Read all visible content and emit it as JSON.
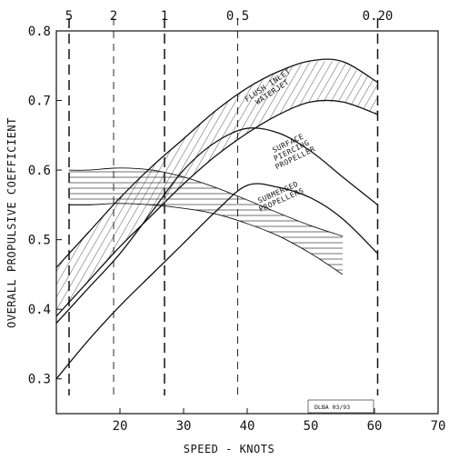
{
  "chart_data": {
    "type": "line",
    "title": "",
    "xlabel": "SPEED - KNOTS",
    "ylabel": "OVERALL PROPULSIVE COEFFICIENT",
    "xlim": [
      10,
      70
    ],
    "ylim": [
      0.25,
      0.8
    ],
    "grid": false,
    "x_ticks": [
      20,
      30,
      40,
      50,
      60,
      70
    ],
    "y_ticks": [
      0.3,
      0.4,
      0.5,
      0.6,
      0.7,
      0.8
    ],
    "x_tick_labels": [
      "20",
      "30",
      "40",
      "50",
      "60",
      "70"
    ],
    "y_tick_labels": [
      "0.3",
      "0.4",
      "0.5",
      "0.6",
      "0.7",
      "0.8"
    ],
    "top_axis": {
      "labels": [
        {
          "text": "5",
          "x": 12
        },
        {
          "text": "2",
          "x": 19
        },
        {
          "text": "1",
          "x": 27
        },
        {
          "text": "0.5",
          "x": 38.5
        },
        {
          "text": "0.20",
          "x": 60.5
        }
      ]
    },
    "reference_lines": [
      12,
      19,
      27,
      38.5,
      60.5
    ],
    "series": [
      {
        "name": "FLUSH INLET WATERJET",
        "kind": "band",
        "hatch": "diagonal",
        "upper": {
          "x": [
            10,
            15,
            20,
            25,
            30,
            35,
            40,
            45,
            50,
            55,
            60.5
          ],
          "y": [
            0.46,
            0.51,
            0.56,
            0.605,
            0.645,
            0.685,
            0.718,
            0.742,
            0.757,
            0.756,
            0.726
          ]
        },
        "lower": {
          "x": [
            10,
            15,
            20,
            25,
            30,
            35,
            40,
            45,
            50,
            55,
            60.5
          ],
          "y": [
            0.39,
            0.44,
            0.49,
            0.535,
            0.58,
            0.62,
            0.653,
            0.68,
            0.698,
            0.698,
            0.68
          ]
        }
      },
      {
        "name": "SURFACE PIERCING PROPELLER",
        "kind": "band",
        "hatch": "none",
        "upper": {
          "x": [
            10,
            15,
            20,
            25,
            30,
            35,
            40,
            45,
            50,
            55,
            60.5
          ],
          "y": [
            0.38,
            0.43,
            0.48,
            0.54,
            0.6,
            0.64,
            0.66,
            0.653,
            0.627,
            0.59,
            0.55
          ]
        },
        "lower": {
          "x": [
            10,
            15,
            20,
            25,
            30,
            35,
            40,
            45,
            50,
            55,
            60.5
          ],
          "y": [
            0.3,
            0.355,
            0.405,
            0.45,
            0.495,
            0.54,
            0.578,
            0.575,
            0.56,
            0.53,
            0.48
          ]
        }
      },
      {
        "name": "SUBMERGED PROPELLERS",
        "kind": "band",
        "hatch": "horizontal",
        "upper": {
          "x": [
            12,
            15,
            20,
            25,
            30,
            35,
            40,
            45,
            50,
            55
          ],
          "y": [
            0.6,
            0.6,
            0.603,
            0.6,
            0.59,
            0.575,
            0.557,
            0.538,
            0.52,
            0.505
          ]
        },
        "lower": {
          "x": [
            12,
            15,
            20,
            25,
            30,
            35,
            40,
            45,
            50,
            55
          ],
          "y": [
            0.55,
            0.55,
            0.552,
            0.55,
            0.545,
            0.537,
            0.523,
            0.505,
            0.48,
            0.45
          ]
        }
      }
    ],
    "annotations": [
      "FLUSH INLET WATERJET",
      "SURFACE PIERCING PROPELLER",
      "SUBMERGED PROPELLERS",
      "DLBA 03/93"
    ]
  }
}
